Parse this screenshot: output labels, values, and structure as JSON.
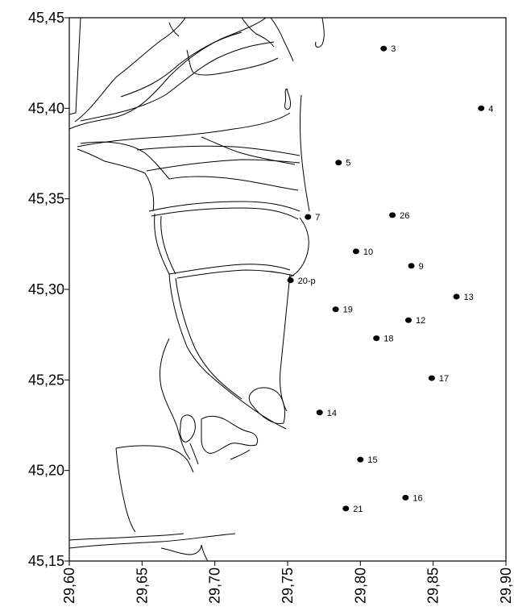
{
  "chart_data": {
    "type": "scatter",
    "title": "",
    "xlabel": "",
    "ylabel": "",
    "xlim": [
      29.6,
      29.9
    ],
    "ylim": [
      45.15,
      45.45
    ],
    "x_ticks": [
      "29,60",
      "29,65",
      "29,70",
      "29,75",
      "29,80",
      "29,85",
      "29,90"
    ],
    "x_tick_values": [
      29.6,
      29.65,
      29.7,
      29.75,
      29.8,
      29.85,
      29.9
    ],
    "y_ticks": [
      "45,45",
      "45,40",
      "45,35",
      "45,30",
      "45,25",
      "45,20",
      "45,15"
    ],
    "y_tick_values": [
      45.45,
      45.4,
      45.35,
      45.3,
      45.25,
      45.2,
      45.15
    ],
    "grid": false,
    "marker_color": "#000000",
    "points": [
      {
        "label": "3",
        "x": 29.816,
        "y": 45.433
      },
      {
        "label": "4",
        "x": 29.883,
        "y": 45.4
      },
      {
        "label": "5",
        "x": 29.785,
        "y": 45.37
      },
      {
        "label": "7",
        "x": 29.764,
        "y": 45.34
      },
      {
        "label": "26",
        "x": 29.822,
        "y": 45.341
      },
      {
        "label": "10",
        "x": 29.797,
        "y": 45.321
      },
      {
        "label": "9",
        "x": 29.835,
        "y": 45.313
      },
      {
        "label": "20-p",
        "x": 29.752,
        "y": 45.305
      },
      {
        "label": "13",
        "x": 29.866,
        "y": 45.296
      },
      {
        "label": "19",
        "x": 29.783,
        "y": 45.289
      },
      {
        "label": "12",
        "x": 29.833,
        "y": 45.283
      },
      {
        "label": "18",
        "x": 29.811,
        "y": 45.273
      },
      {
        "label": "17",
        "x": 29.849,
        "y": 45.251
      },
      {
        "label": "14",
        "x": 29.772,
        "y": 45.232
      },
      {
        "label": "15",
        "x": 29.8,
        "y": 45.206
      },
      {
        "label": "16",
        "x": 29.831,
        "y": 45.185
      },
      {
        "label": "21",
        "x": 29.79,
        "y": 45.179
      }
    ]
  }
}
